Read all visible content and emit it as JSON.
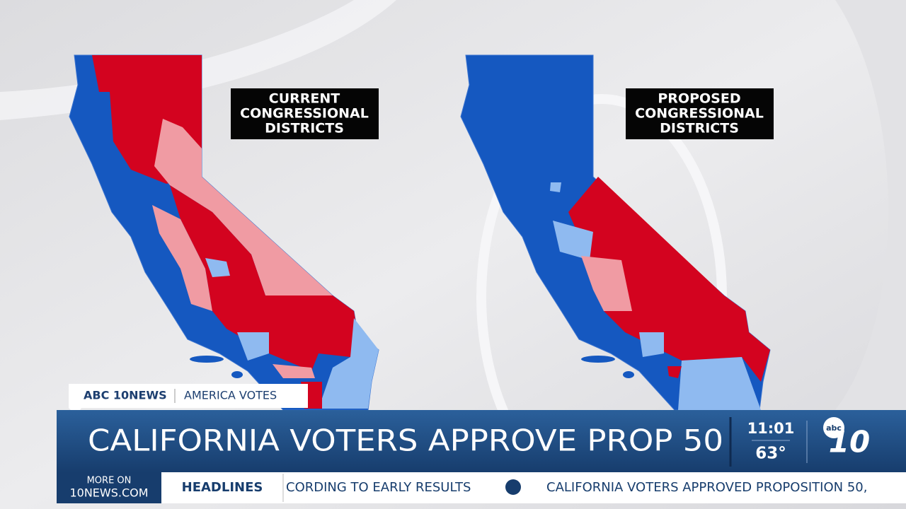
{
  "maps": [
    {
      "label_lines": [
        "CURRENT",
        "CONGRESSIONAL",
        "DISTRICTS"
      ]
    },
    {
      "label_lines": [
        "PROPOSED",
        "CONGRESSIONAL",
        "DISTRICTS"
      ]
    }
  ],
  "tag": {
    "brand": "ABC 10NEWS",
    "section": "AMERICA VOTES"
  },
  "headline": "CALIFORNIA VOTERS APPROVE PROP 50",
  "clock": {
    "time": "11:01",
    "temperature": "63°"
  },
  "logo": {
    "network": "abc",
    "channel": "10"
  },
  "ticker": {
    "more_on": "MORE ON",
    "site": "10NEWS.COM",
    "section": "HEADLINES",
    "items": [
      "CORDING TO EARLY RESULTS",
      "CALIFORNIA VOTERS APPROVED PROPOSITION 50,"
    ]
  }
}
